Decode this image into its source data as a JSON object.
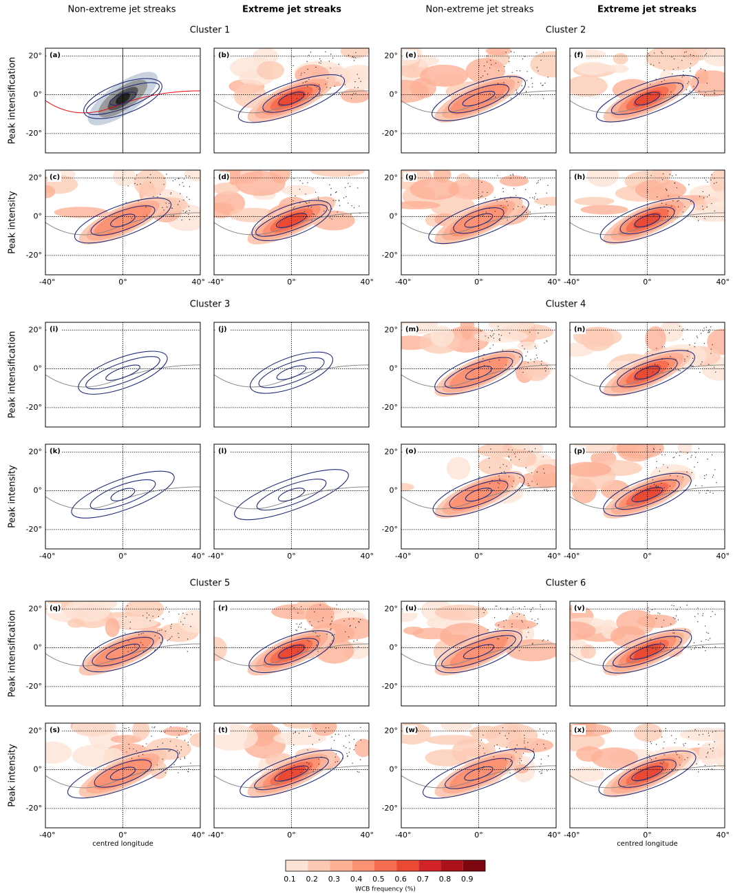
{
  "column_headers": [
    "Non-extreme jet streaks",
    "Extreme jet streaks",
    "Non-extreme jet streaks",
    "Extreme jet streaks"
  ],
  "clusters": [
    "Cluster 1",
    "Cluster 2",
    "Cluster 3",
    "Cluster 4",
    "Cluster 5",
    "Cluster 6"
  ],
  "row_labels": [
    "Peak intensification",
    "Peak intensity"
  ],
  "panel_labels": [
    "(a)",
    "(b)",
    "(c)",
    "(d)",
    "(e)",
    "(f)",
    "(g)",
    "(h)",
    "(i)",
    "(j)",
    "(k)",
    "(l)",
    "(m)",
    "(n)",
    "(o)",
    "(p)",
    "(q)",
    "(r)",
    "(s)",
    "(t)",
    "(u)",
    "(v)",
    "(w)",
    "(x)"
  ],
  "axes": {
    "xlim": [
      -41,
      41
    ],
    "ylim": [
      -30,
      24
    ],
    "xticks": [
      {
        "value": -40,
        "label": "-40°"
      },
      {
        "value": 0,
        "label": "0°"
      },
      {
        "value": 40,
        "label": "40°"
      }
    ],
    "yticks": [
      {
        "value": -20,
        "label": "-20°"
      },
      {
        "value": 0,
        "label": "0°"
      },
      {
        "value": 20,
        "label": "20°"
      }
    ],
    "xlabel": "centred longitude"
  },
  "colorbar": {
    "label": "WCB frequency (%)",
    "ticks": [
      0.1,
      0.2,
      0.3,
      0.4,
      0.5,
      0.6,
      0.7,
      0.8,
      0.9
    ],
    "colors": [
      "#fde3d6",
      "#fccab4",
      "#fcb096",
      "#fb9274",
      "#f66f52",
      "#ea4a33",
      "#d2232a",
      "#ab1119",
      "#7d0711"
    ]
  }
}
